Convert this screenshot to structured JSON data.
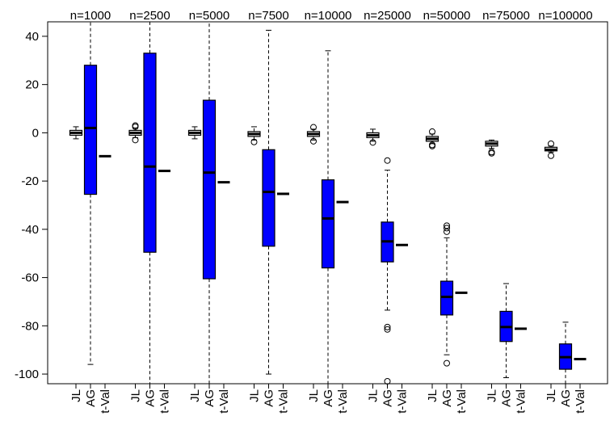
{
  "chart_data": {
    "type": "box",
    "ylim": [
      -104,
      46
    ],
    "y_ticks": [
      40,
      20,
      0,
      -20,
      -40,
      -60,
      -80,
      -100
    ],
    "y_tick_labels": [
      "40",
      "20",
      "0",
      "-20",
      "-40",
      "-60",
      "-80",
      "-100"
    ],
    "methods": [
      "JL",
      "AG",
      "t-Val"
    ],
    "colors": {
      "AG": "#0000ff",
      "JL": "#ffffff",
      "stroke": "#000000"
    },
    "groups": [
      {
        "label": "n=1000",
        "JL": {
          "whisker_low": -2.5,
          "q1": -1,
          "median": 0,
          "q3": 1,
          "whisker_high": 2.5,
          "outliers": []
        },
        "AG": {
          "whisker_low": -96,
          "q1": -25.5,
          "median": 2,
          "q3": 28,
          "whisker_high": 46,
          "outliers": []
        },
        "tval": -9.7
      },
      {
        "label": "n=2500",
        "JL": {
          "whisker_low": -2,
          "q1": -1,
          "median": 0,
          "q3": 1,
          "whisker_high": 2,
          "outliers": [
            3,
            2.5,
            -3
          ]
        },
        "AG": {
          "whisker_low": -104,
          "q1": -49.5,
          "median": -14,
          "q3": 33,
          "whisker_high": 46,
          "outliers": []
        },
        "tval": -15.8
      },
      {
        "label": "n=5000",
        "JL": {
          "whisker_low": -2.5,
          "q1": -1,
          "median": 0,
          "q3": 1,
          "whisker_high": 2.5,
          "outliers": []
        },
        "AG": {
          "whisker_low": -104,
          "q1": -60.5,
          "median": -16.5,
          "q3": 13.5,
          "whisker_high": 46,
          "outliers": []
        },
        "tval": -20.5
      },
      {
        "label": "n=7500",
        "JL": {
          "whisker_low": -3,
          "q1": -1.5,
          "median": -0.5,
          "q3": 0.5,
          "whisker_high": 2.5,
          "outliers": [
            -3.8
          ]
        },
        "AG": {
          "whisker_low": -100,
          "q1": -47,
          "median": -24.5,
          "q3": -7,
          "whisker_high": 42.5,
          "outliers": []
        },
        "tval": -25.3
      },
      {
        "label": "n=10000",
        "JL": {
          "whisker_low": -3,
          "q1": -1.5,
          "median": -0.5,
          "q3": 0.5,
          "whisker_high": 1.5,
          "outliers": [
            2.3,
            -3.5
          ]
        },
        "AG": {
          "whisker_low": -104,
          "q1": -56,
          "median": -35.5,
          "q3": -19.5,
          "whisker_high": 34,
          "outliers": []
        },
        "tval": -28.7
      },
      {
        "label": "n=25000",
        "JL": {
          "whisker_low": -3.5,
          "q1": -2,
          "median": -1,
          "q3": 0,
          "whisker_high": 1.5,
          "outliers": [
            -4
          ]
        },
        "AG": {
          "whisker_low": -73.5,
          "q1": -53.5,
          "median": -45,
          "q3": -37,
          "whisker_high": -15.5,
          "outliers": [
            -11.5,
            -80.5,
            -81.5,
            -103
          ]
        },
        "tval": -46.5
      },
      {
        "label": "n=50000",
        "JL": {
          "whisker_low": -4.5,
          "q1": -3.5,
          "median": -2.5,
          "q3": -1.5,
          "whisker_high": -0.5,
          "outliers": [
            0.5,
            -5,
            -5.5
          ]
        },
        "AG": {
          "whisker_low": -92,
          "q1": -75.5,
          "median": -68,
          "q3": -61.5,
          "whisker_high": -43.5,
          "outliers": [
            -38.5,
            -39.5,
            -41,
            -95.5
          ]
        },
        "tval": -66.3
      },
      {
        "label": "n=75000",
        "JL": {
          "whisker_low": -6.5,
          "q1": -5.5,
          "median": -4.5,
          "q3": -3.5,
          "whisker_high": -3,
          "outliers": [
            -8.5,
            -8
          ]
        },
        "AG": {
          "whisker_low": -101.5,
          "q1": -86.5,
          "median": -80.5,
          "q3": -74,
          "whisker_high": -62.5,
          "outliers": []
        },
        "tval": -81.2
      },
      {
        "label": "n=100000",
        "JL": {
          "whisker_low": -8,
          "q1": -7.5,
          "median": -7,
          "q3": -6,
          "whisker_high": -5.5,
          "outliers": [
            -4.5,
            -9.5
          ]
        },
        "AG": {
          "whisker_low": -104,
          "q1": -98,
          "median": -93,
          "q3": -87.5,
          "whisker_high": -78.5,
          "outliers": []
        },
        "tval": -93.8
      }
    ]
  }
}
